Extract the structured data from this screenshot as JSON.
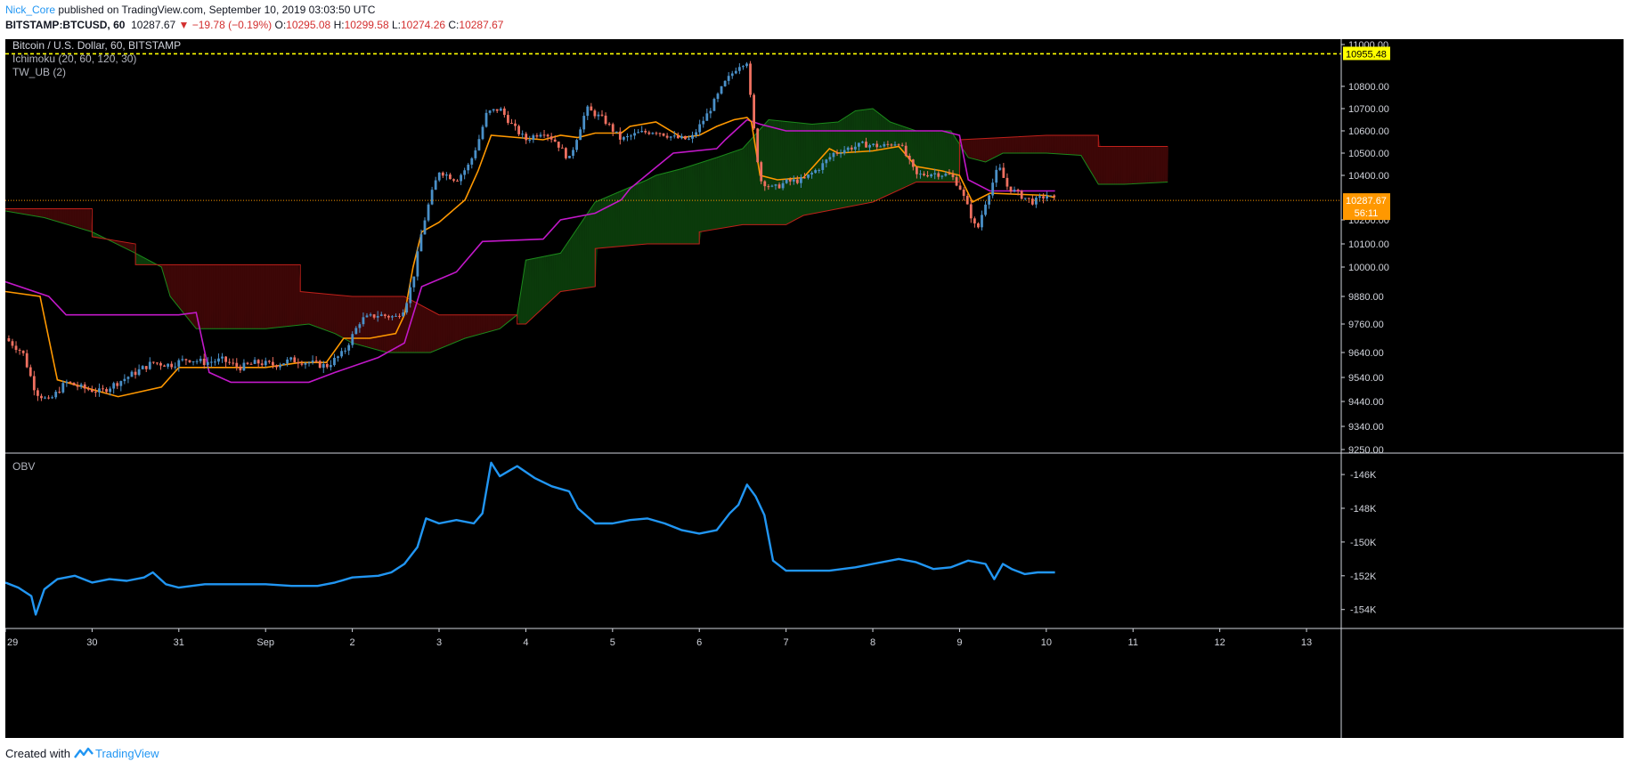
{
  "header": {
    "author": "Nick_Core",
    "published_text": "published on TradingView.com, September 10, 2019 03:03:50 UTC",
    "symbol": "BITSTAMP:BTCUSD, 60",
    "last": "10287.67",
    "change": "▼ −19.78 (−0.19%)",
    "o_label": "O:",
    "o_value": "10295.08",
    "h_label": "H:",
    "h_value": "10299.58",
    "l_label": "L:",
    "l_value": "10274.26",
    "c_label": "C:",
    "c_value": "10287.67"
  },
  "legend": {
    "title": "Bitcoin / U.S. Dollar, 60, BITSTAMP",
    "ichimoku": "Ichimoku (20, 60, 120, 30)",
    "tw_ub": "TW_UB (2)",
    "obv": "OBV"
  },
  "footer": {
    "created_with": "Created with",
    "brand": "TradingView"
  },
  "colors": {
    "background": "#000000",
    "candle_up": "#4a90c8",
    "candle_down": "#ef7060",
    "conversion_line": "#ff9800",
    "base_line": "#c218c9",
    "cloud_bull": "#0b3a0b",
    "cloud_bear": "#3d0707",
    "span_a": "#1b8a1b",
    "span_b": "#c0201a",
    "obv_line": "#2196f3",
    "alert_line": "#ffff00",
    "last_price": "#ff9800"
  },
  "chart_data": {
    "type": "candlestick",
    "title": "Bitcoin / U.S. Dollar, 60, BITSTAMP",
    "price_axis": {
      "ticks": [
        "11000.00",
        "10800.00",
        "10700.00",
        "10600.00",
        "10500.00",
        "10400.00",
        "10200.00",
        "10100.00",
        "10000.00",
        "9880.00",
        "9760.00",
        "9640.00",
        "9540.00",
        "9440.00",
        "9340.00",
        "9250.00"
      ],
      "ylim": [
        9250,
        11030
      ]
    },
    "time_axis": {
      "ticks": [
        "29",
        "30",
        "31",
        "Sep",
        "2",
        "3",
        "4",
        "5",
        "6",
        "7",
        "8",
        "9",
        "10",
        "11",
        "12",
        "13"
      ],
      "xlim": [
        0,
        15.4
      ]
    },
    "alert_line": {
      "value": 10955.48,
      "label": "10955.48"
    },
    "last_price": {
      "value": 10287.67,
      "label": "10287.67",
      "countdown": "56:11"
    },
    "close": [
      [
        0,
        9700
      ],
      [
        0.2,
        9640
      ],
      [
        0.35,
        9480
      ],
      [
        0.5,
        9440
      ],
      [
        0.7,
        9520
      ],
      [
        0.9,
        9495
      ],
      [
        1.1,
        9480
      ],
      [
        1.3,
        9520
      ],
      [
        1.5,
        9560
      ],
      [
        1.7,
        9600
      ],
      [
        1.9,
        9590
      ],
      [
        2.1,
        9615
      ],
      [
        2.3,
        9600
      ],
      [
        2.5,
        9610
      ],
      [
        2.7,
        9580
      ],
      [
        2.9,
        9600
      ],
      [
        3.1,
        9590
      ],
      [
        3.3,
        9610
      ],
      [
        3.5,
        9600
      ],
      [
        3.7,
        9585
      ],
      [
        3.9,
        9640
      ],
      [
        4.1,
        9780
      ],
      [
        4.3,
        9800
      ],
      [
        4.5,
        9790
      ],
      [
        4.6,
        9830
      ],
      [
        4.7,
        9950
      ],
      [
        4.8,
        10150
      ],
      [
        4.9,
        10300
      ],
      [
        5.0,
        10420
      ],
      [
        5.2,
        10380
      ],
      [
        5.35,
        10450
      ],
      [
        5.45,
        10550
      ],
      [
        5.55,
        10680
      ],
      [
        5.7,
        10700
      ],
      [
        5.85,
        10620
      ],
      [
        6.0,
        10560
      ],
      [
        6.2,
        10600
      ],
      [
        6.35,
        10550
      ],
      [
        6.5,
        10470
      ],
      [
        6.7,
        10700
      ],
      [
        6.9,
        10650
      ],
      [
        7.1,
        10560
      ],
      [
        7.3,
        10590
      ],
      [
        7.5,
        10600
      ],
      [
        7.7,
        10570
      ],
      [
        7.9,
        10560
      ],
      [
        8.1,
        10680
      ],
      [
        8.3,
        10820
      ],
      [
        8.45,
        10900
      ],
      [
        8.55,
        10920
      ],
      [
        8.6,
        10700
      ],
      [
        8.7,
        10380
      ],
      [
        8.85,
        10340
      ],
      [
        9.0,
        10370
      ],
      [
        9.2,
        10380
      ],
      [
        9.4,
        10440
      ],
      [
        9.55,
        10500
      ],
      [
        9.7,
        10520
      ],
      [
        9.9,
        10540
      ],
      [
        10.1,
        10530
      ],
      [
        10.3,
        10550
      ],
      [
        10.5,
        10400
      ],
      [
        10.7,
        10410
      ],
      [
        10.9,
        10400
      ],
      [
        11.0,
        10350
      ],
      [
        11.1,
        10250
      ],
      [
        11.2,
        10150
      ],
      [
        11.3,
        10280
      ],
      [
        11.45,
        10440
      ],
      [
        11.55,
        10350
      ],
      [
        11.7,
        10310
      ],
      [
        11.85,
        10280
      ],
      [
        12.0,
        10310
      ],
      [
        12.1,
        10290
      ]
    ],
    "conversion_line": [
      [
        0,
        9900
      ],
      [
        0.4,
        9880
      ],
      [
        0.6,
        9530
      ],
      [
        1.3,
        9460
      ],
      [
        1.8,
        9500
      ],
      [
        2.0,
        9580
      ],
      [
        2.6,
        9580
      ],
      [
        3.0,
        9580
      ],
      [
        3.4,
        9600
      ],
      [
        3.7,
        9600
      ],
      [
        3.9,
        9700
      ],
      [
        4.2,
        9700
      ],
      [
        4.5,
        9720
      ],
      [
        4.6,
        9800
      ],
      [
        4.7,
        10000
      ],
      [
        4.8,
        10150
      ],
      [
        5.0,
        10190
      ],
      [
        5.3,
        10290
      ],
      [
        5.45,
        10420
      ],
      [
        5.6,
        10580
      ],
      [
        6.2,
        10560
      ],
      [
        6.4,
        10580
      ],
      [
        6.6,
        10570
      ],
      [
        6.8,
        10590
      ],
      [
        7.1,
        10590
      ],
      [
        7.2,
        10620
      ],
      [
        7.5,
        10640
      ],
      [
        7.8,
        10570
      ],
      [
        8.0,
        10580
      ],
      [
        8.2,
        10620
      ],
      [
        8.4,
        10650
      ],
      [
        8.55,
        10660
      ],
      [
        8.6,
        10640
      ],
      [
        8.7,
        10400
      ],
      [
        8.9,
        10380
      ],
      [
        9.2,
        10390
      ],
      [
        9.5,
        10520
      ],
      [
        9.6,
        10500
      ],
      [
        10.0,
        10510
      ],
      [
        10.3,
        10530
      ],
      [
        10.5,
        10440
      ],
      [
        10.8,
        10420
      ],
      [
        11.0,
        10400
      ],
      [
        11.15,
        10280
      ],
      [
        11.35,
        10320
      ],
      [
        12.0,
        10310
      ],
      [
        12.1,
        10300
      ]
    ],
    "base_line": [
      [
        0,
        9940
      ],
      [
        0.5,
        9880
      ],
      [
        0.7,
        9800
      ],
      [
        1.5,
        9800
      ],
      [
        2.0,
        9800
      ],
      [
        2.2,
        9810
      ],
      [
        2.35,
        9560
      ],
      [
        2.6,
        9520
      ],
      [
        3.0,
        9520
      ],
      [
        3.5,
        9520
      ],
      [
        3.8,
        9560
      ],
      [
        4.3,
        9620
      ],
      [
        4.6,
        9680
      ],
      [
        4.8,
        9920
      ],
      [
        5.2,
        9980
      ],
      [
        5.5,
        10110
      ],
      [
        6.2,
        10120
      ],
      [
        6.4,
        10200
      ],
      [
        6.8,
        10230
      ],
      [
        7.1,
        10290
      ],
      [
        7.2,
        10340
      ],
      [
        7.45,
        10420
      ],
      [
        7.7,
        10500
      ],
      [
        8.2,
        10520
      ],
      [
        8.3,
        10560
      ],
      [
        8.55,
        10650
      ],
      [
        8.7,
        10630
      ],
      [
        9.0,
        10600
      ],
      [
        10.0,
        10600
      ],
      [
        10.8,
        10600
      ],
      [
        11.0,
        10580
      ],
      [
        11.1,
        10380
      ],
      [
        11.35,
        10330
      ],
      [
        12.0,
        10330
      ],
      [
        12.1,
        10330
      ]
    ],
    "span_a": [
      [
        0,
        10240
      ],
      [
        0.45,
        10210
      ],
      [
        1.0,
        10150
      ],
      [
        1.5,
        10060
      ],
      [
        1.8,
        10000
      ],
      [
        1.9,
        9880
      ],
      [
        2.2,
        9740
      ],
      [
        3.0,
        9740
      ],
      [
        3.5,
        9760
      ],
      [
        3.8,
        9720
      ],
      [
        4.0,
        9680
      ],
      [
        4.4,
        9640
      ],
      [
        4.9,
        9640
      ],
      [
        5.3,
        9700
      ],
      [
        5.7,
        9740
      ],
      [
        5.9,
        9800
      ],
      [
        6.0,
        10030
      ],
      [
        6.4,
        10060
      ],
      [
        6.8,
        10280
      ],
      [
        7.1,
        10330
      ],
      [
        7.4,
        10380
      ],
      [
        7.5,
        10400
      ],
      [
        7.8,
        10430
      ],
      [
        8.2,
        10480
      ],
      [
        8.5,
        10520
      ],
      [
        8.8,
        10650
      ],
      [
        9.3,
        10630
      ],
      [
        9.6,
        10640
      ],
      [
        9.8,
        10690
      ],
      [
        10.0,
        10700
      ],
      [
        10.2,
        10640
      ],
      [
        10.5,
        10600
      ],
      [
        10.9,
        10600
      ],
      [
        11.1,
        10480
      ],
      [
        11.3,
        10460
      ],
      [
        11.5,
        10500
      ],
      [
        12.0,
        10500
      ],
      [
        12.4,
        10490
      ],
      [
        12.6,
        10360
      ],
      [
        12.9,
        10360
      ],
      [
        13.4,
        10370
      ]
    ],
    "span_b": [
      [
        0,
        10250
      ],
      [
        0.5,
        10250
      ],
      [
        1.0,
        10250
      ],
      [
        1.0,
        10130
      ],
      [
        1.5,
        10100
      ],
      [
        1.5,
        10010
      ],
      [
        3.4,
        10010
      ],
      [
        3.4,
        9900
      ],
      [
        4.0,
        9880
      ],
      [
        4.6,
        9880
      ],
      [
        5.0,
        9800
      ],
      [
        5.9,
        9800
      ],
      [
        5.9,
        9760
      ],
      [
        6.0,
        9760
      ],
      [
        6.4,
        9900
      ],
      [
        6.8,
        9920
      ],
      [
        6.8,
        10080
      ],
      [
        7.4,
        10100
      ],
      [
        8.0,
        10100
      ],
      [
        8.0,
        10150
      ],
      [
        8.5,
        10180
      ],
      [
        9.0,
        10180
      ],
      [
        9.2,
        10220
      ],
      [
        9.6,
        10250
      ],
      [
        10.0,
        10280
      ],
      [
        10.5,
        10370
      ],
      [
        11.0,
        10370
      ],
      [
        11.0,
        10560
      ],
      [
        12.0,
        10580
      ],
      [
        12.6,
        10580
      ],
      [
        12.6,
        10530
      ],
      [
        13.4,
        10530
      ]
    ],
    "obv": {
      "ticks": [
        "-146K",
        "-148K",
        "-150K",
        "-152K",
        "-154K"
      ],
      "ylim": [
        -154.7,
        -145.1
      ],
      "values": [
        [
          0,
          -152.4
        ],
        [
          0.15,
          -152.7
        ],
        [
          0.3,
          -153.2
        ],
        [
          0.35,
          -154.3
        ],
        [
          0.45,
          -152.8
        ],
        [
          0.6,
          -152.2
        ],
        [
          0.8,
          -152.0
        ],
        [
          1.0,
          -152.4
        ],
        [
          1.2,
          -152.2
        ],
        [
          1.4,
          -152.3
        ],
        [
          1.6,
          -152.1
        ],
        [
          1.7,
          -151.8
        ],
        [
          1.85,
          -152.5
        ],
        [
          2.0,
          -152.7
        ],
        [
          2.3,
          -152.5
        ],
        [
          2.6,
          -152.5
        ],
        [
          3.0,
          -152.5
        ],
        [
          3.3,
          -152.6
        ],
        [
          3.6,
          -152.6
        ],
        [
          3.8,
          -152.4
        ],
        [
          4.0,
          -152.1
        ],
        [
          4.3,
          -152.0
        ],
        [
          4.45,
          -151.8
        ],
        [
          4.6,
          -151.3
        ],
        [
          4.75,
          -150.3
        ],
        [
          4.85,
          -148.6
        ],
        [
          5.0,
          -148.9
        ],
        [
          5.2,
          -148.7
        ],
        [
          5.4,
          -148.9
        ],
        [
          5.5,
          -148.3
        ],
        [
          5.6,
          -145.3
        ],
        [
          5.7,
          -146.1
        ],
        [
          5.8,
          -145.8
        ],
        [
          5.9,
          -145.5
        ],
        [
          6.1,
          -146.2
        ],
        [
          6.3,
          -146.7
        ],
        [
          6.5,
          -147.0
        ],
        [
          6.6,
          -148.0
        ],
        [
          6.8,
          -148.9
        ],
        [
          7.0,
          -148.9
        ],
        [
          7.2,
          -148.7
        ],
        [
          7.4,
          -148.6
        ],
        [
          7.6,
          -148.9
        ],
        [
          7.8,
          -149.3
        ],
        [
          8.0,
          -149.5
        ],
        [
          8.2,
          -149.3
        ],
        [
          8.35,
          -148.3
        ],
        [
          8.45,
          -147.8
        ],
        [
          8.55,
          -146.6
        ],
        [
          8.65,
          -147.3
        ],
        [
          8.75,
          -148.4
        ],
        [
          8.85,
          -151.1
        ],
        [
          9.0,
          -151.7
        ],
        [
          9.3,
          -151.7
        ],
        [
          9.5,
          -151.7
        ],
        [
          9.8,
          -151.5
        ],
        [
          10.0,
          -151.3
        ],
        [
          10.3,
          -151.0
        ],
        [
          10.5,
          -151.2
        ],
        [
          10.7,
          -151.6
        ],
        [
          10.9,
          -151.5
        ],
        [
          11.1,
          -151.1
        ],
        [
          11.3,
          -151.3
        ],
        [
          11.4,
          -152.2
        ],
        [
          11.5,
          -151.3
        ],
        [
          11.6,
          -151.6
        ],
        [
          11.75,
          -151.9
        ],
        [
          11.9,
          -151.8
        ],
        [
          12.1,
          -151.8
        ]
      ]
    }
  }
}
